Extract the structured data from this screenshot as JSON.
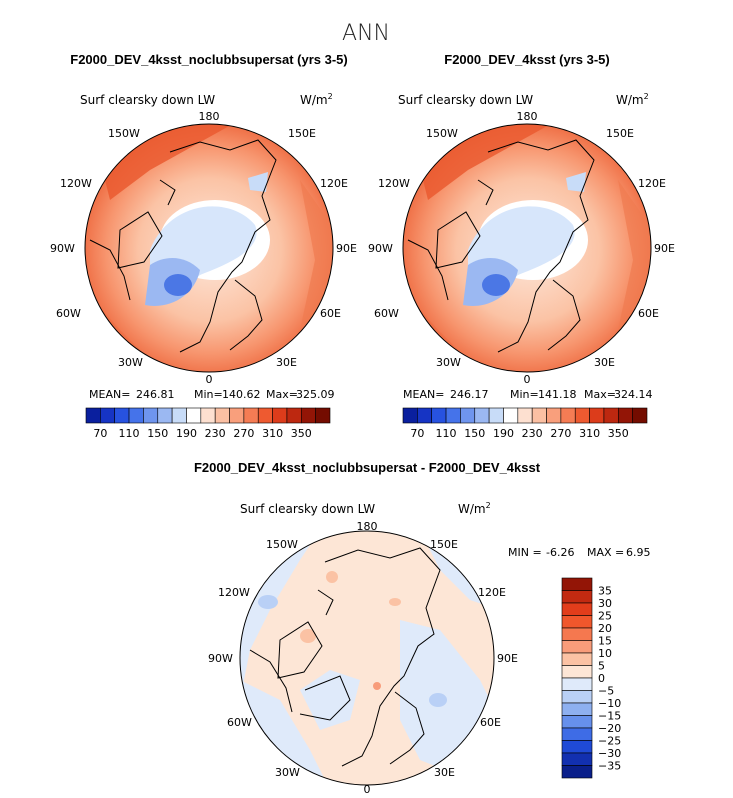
{
  "page_title": "ANN",
  "chart_data": [
    {
      "type": "heatmap",
      "projection": "north-polar-stereographic",
      "title": "F2000_DEV_4ksst_noclubbsupersat (yrs 3-5)",
      "variable": "Surf clearsky down LW",
      "units_base": "W/m",
      "units_exp": "2",
      "stats": {
        "mean_label": "MEAN=",
        "mean": "246.81",
        "min_label": "Min=",
        "min": "140.62",
        "max_label": "Max=",
        "max": "325.09"
      },
      "lon_labels": {
        "n180": "180",
        "e150": "150E",
        "e120": "120E",
        "e90": "90E",
        "e60": "60E",
        "e30": "30E",
        "z0": "0",
        "w30": "30W",
        "w60": "60W",
        "w90": "90W",
        "w120": "120W",
        "w150": "150W"
      },
      "colorbar_ticks": [
        "70",
        "110",
        "150",
        "190",
        "230",
        "270",
        "310",
        "350"
      ],
      "colorbar_colors": [
        "#0a1f9e",
        "#1634c4",
        "#2752e0",
        "#4573ea",
        "#6f95ee",
        "#9bb8f2",
        "#c8dcf8",
        "#ffffff",
        "#fde0d0",
        "#fbc0a3",
        "#f99f7c",
        "#f57c54",
        "#ee5a30",
        "#dc3c1b",
        "#bd2810",
        "#931506",
        "#740c00"
      ]
    },
    {
      "type": "heatmap",
      "projection": "north-polar-stereographic",
      "title": "F2000_DEV_4ksst (yrs 3-5)",
      "variable": "Surf clearsky down LW",
      "units_base": "W/m",
      "units_exp": "2",
      "stats": {
        "mean_label": "MEAN=",
        "mean": "246.17",
        "min_label": "Min=",
        "min": "141.18",
        "max_label": "Max=",
        "max": "324.14"
      },
      "lon_labels": {
        "n180": "180",
        "e150": "150E",
        "e120": "120E",
        "e90": "90E",
        "e60": "60E",
        "e30": "30E",
        "z0": "0",
        "w30": "30W",
        "w60": "60W",
        "w90": "90W",
        "w120": "120W",
        "w150": "150W"
      },
      "colorbar_ticks": [
        "70",
        "110",
        "150",
        "190",
        "230",
        "270",
        "310",
        "350"
      ]
    },
    {
      "type": "heatmap",
      "projection": "north-polar-stereographic",
      "title": "F2000_DEV_4ksst_noclubbsupersat - F2000_DEV_4ksst",
      "variable": "Surf clearsky down LW",
      "units_base": "W/m",
      "units_exp": "2",
      "stats": {
        "min_label": "MIN =",
        "min": "-6.26",
        "max_label": "MAX =",
        "max": "6.95"
      },
      "lon_labels": {
        "n180": "180",
        "e150": "150E",
        "e120": "120E",
        "e90": "90E",
        "e60": "60E",
        "e30": "30E",
        "z0": "0",
        "w30": "30W",
        "w60": "60W",
        "w90": "90W",
        "w120": "120W",
        "w150": "150W"
      },
      "colorbar_ticks": [
        "35",
        "30",
        "25",
        "20",
        "15",
        "10",
        "5",
        "0",
        "−5",
        "−10",
        "−15",
        "−20",
        "−25",
        "−30",
        "−35"
      ],
      "colorbar_colors": [
        "#931506",
        "#c22a11",
        "#e23d1b",
        "#f0572c",
        "#f5784f",
        "#f89c7a",
        "#fbc2a4",
        "#fde6d6",
        "#dfeafa",
        "#b9d0f6",
        "#8eb0f0",
        "#6690ec",
        "#3e6ce6",
        "#1f4ad6",
        "#1230b0",
        "#0a1f8a"
      ]
    }
  ]
}
